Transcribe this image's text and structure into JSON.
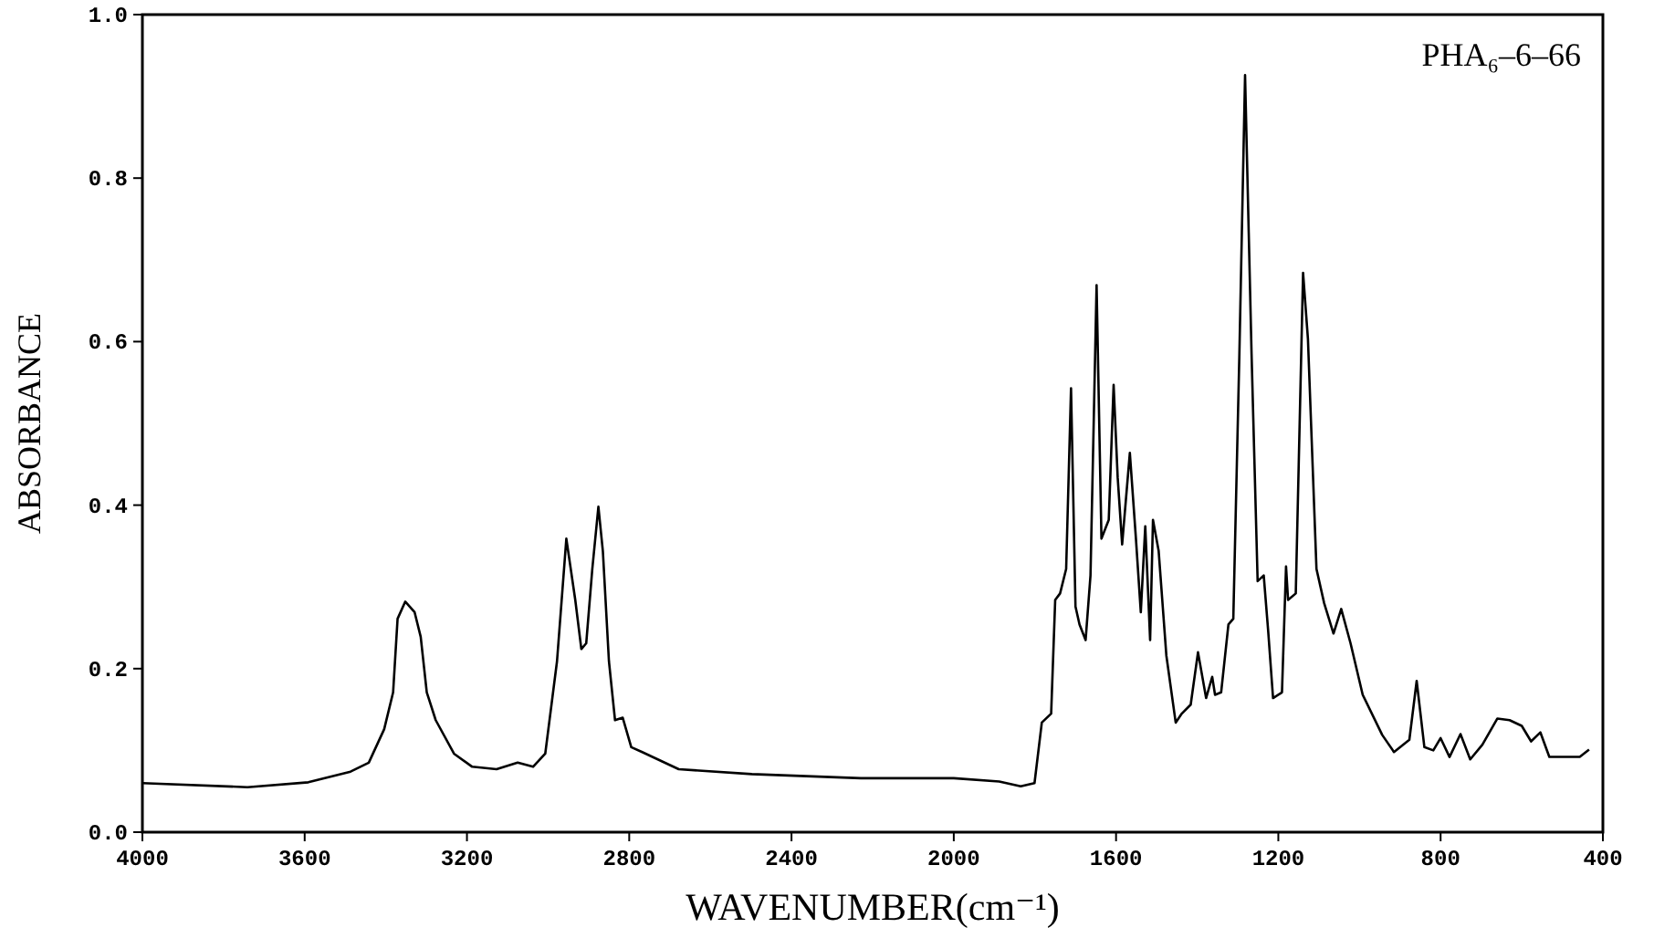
{
  "chart_data": {
    "type": "line",
    "xlabel": "WAVENUMBER(cm⁻¹)",
    "ylabel": "ABSORBANCE",
    "annotations": [
      "PHA₆–6–66"
    ],
    "xlim": [
      4000,
      400
    ],
    "xticks": [
      4000,
      3600,
      3200,
      2800,
      2400,
      2000,
      1600,
      1200,
      800,
      400
    ],
    "ylim": [
      0,
      1
    ],
    "yticks": [
      {
        "value": 0,
        "label": "0.0"
      },
      {
        "value": 0.2,
        "label": "0.2"
      },
      {
        "value": 0.4,
        "label": "0.4"
      },
      {
        "value": 0.6,
        "label": "0.6"
      },
      {
        "value": 0.8,
        "label": "0.8"
      },
      {
        "value": 1,
        "label": "1.0"
      }
    ],
    "grid": false,
    "marker": "none",
    "line_style": "solid",
    "series": [
      {
        "color": "#000000",
        "x": [
          4000,
          3741,
          3591,
          3487,
          3442,
          3404,
          3382,
          3371,
          3352,
          3329,
          3314,
          3299,
          3277,
          3232,
          3187,
          3127,
          3075,
          3037,
          3007,
          2978,
          2955,
          2933,
          2918,
          2906,
          2891,
          2876,
          2865,
          2850,
          2835,
          2816,
          2795,
          2768,
          2678,
          2498,
          2229,
          2000,
          1888,
          1835,
          1801,
          1783,
          1760,
          1750,
          1738,
          1723,
          1711,
          1700,
          1690,
          1675,
          1663,
          1648,
          1636,
          1618,
          1606,
          1596,
          1585,
          1566,
          1551,
          1539,
          1528,
          1516,
          1509,
          1495,
          1476,
          1453,
          1438,
          1416,
          1398,
          1378,
          1363,
          1356,
          1341,
          1323,
          1311,
          1296,
          1282,
          1266,
          1251,
          1236,
          1225,
          1213,
          1191,
          1181,
          1176,
          1157,
          1139,
          1127,
          1106,
          1087,
          1064,
          1045,
          1022,
          992,
          944,
          915,
          877,
          859,
          840,
          818,
          800,
          778,
          751,
          727,
          697,
          660,
          630,
          600,
          577,
          554,
          532,
          457,
          434
        ],
        "values": [
          0.06,
          0.055,
          0.061,
          0.074,
          0.085,
          0.126,
          0.171,
          0.261,
          0.282,
          0.269,
          0.239,
          0.171,
          0.137,
          0.096,
          0.08,
          0.077,
          0.085,
          0.08,
          0.096,
          0.209,
          0.359,
          0.284,
          0.224,
          0.231,
          0.322,
          0.398,
          0.344,
          0.209,
          0.137,
          0.14,
          0.104,
          0.098,
          0.077,
          0.071,
          0.066,
          0.066,
          0.062,
          0.056,
          0.06,
          0.134,
          0.145,
          0.284,
          0.292,
          0.322,
          0.543,
          0.276,
          0.254,
          0.235,
          0.314,
          0.669,
          0.359,
          0.382,
          0.547,
          0.434,
          0.352,
          0.464,
          0.359,
          0.269,
          0.374,
          0.235,
          0.382,
          0.344,
          0.216,
          0.134,
          0.145,
          0.156,
          0.22,
          0.164,
          0.19,
          0.168,
          0.171,
          0.254,
          0.261,
          0.585,
          0.926,
          0.585,
          0.307,
          0.314,
          0.246,
          0.164,
          0.171,
          0.325,
          0.284,
          0.292,
          0.684,
          0.603,
          0.322,
          0.28,
          0.243,
          0.273,
          0.231,
          0.168,
          0.119,
          0.098,
          0.113,
          0.185,
          0.104,
          0.1,
          0.115,
          0.092,
          0.12,
          0.089,
          0.107,
          0.139,
          0.137,
          0.13,
          0.111,
          0.122,
          0.092,
          0.092,
          0.101
        ]
      }
    ]
  }
}
